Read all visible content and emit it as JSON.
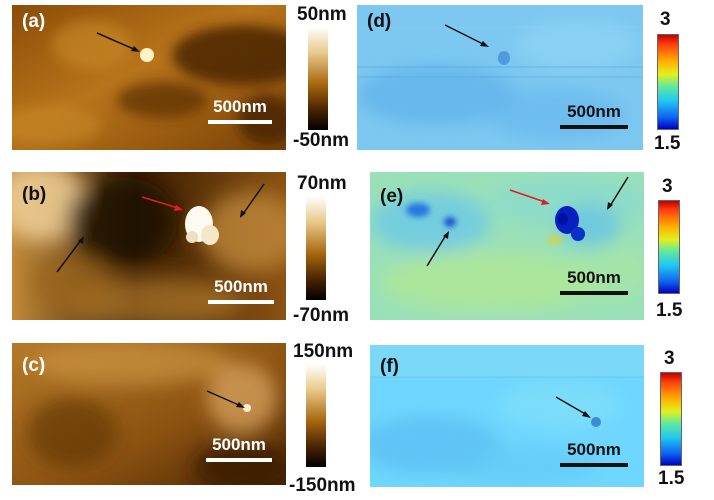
{
  "panels": [
    {
      "label": "(a)",
      "type": "topography",
      "scalebar": "500nm",
      "colorbar": {
        "max": "50nm",
        "min": "-50nm"
      }
    },
    {
      "label": "(b)",
      "type": "topography",
      "scalebar": "500nm",
      "colorbar": {
        "max": "70nm",
        "min": "-70nm"
      }
    },
    {
      "label": "(c)",
      "type": "topography",
      "scalebar": "500nm",
      "colorbar": {
        "max": "150nm",
        "min": "-150nm"
      }
    },
    {
      "label": "(d)",
      "type": "property-map",
      "scalebar": "500nm",
      "colorbar": {
        "max": "3",
        "min": "1.5"
      }
    },
    {
      "label": "(e)",
      "type": "property-map",
      "scalebar": "500nm",
      "colorbar": {
        "max": "3",
        "min": "1.5"
      }
    },
    {
      "label": "(f)",
      "type": "property-map",
      "scalebar": "500nm",
      "colorbar": {
        "max": "3",
        "min": "1.5"
      }
    }
  ],
  "colors": {
    "afm_dark": "#1a0d02",
    "afm_mid": "#a8680f",
    "afm_light": "#fff8e6",
    "map_base": "#6fd6ff",
    "arrow_black": "#111111",
    "arrow_red": "#e02020"
  }
}
